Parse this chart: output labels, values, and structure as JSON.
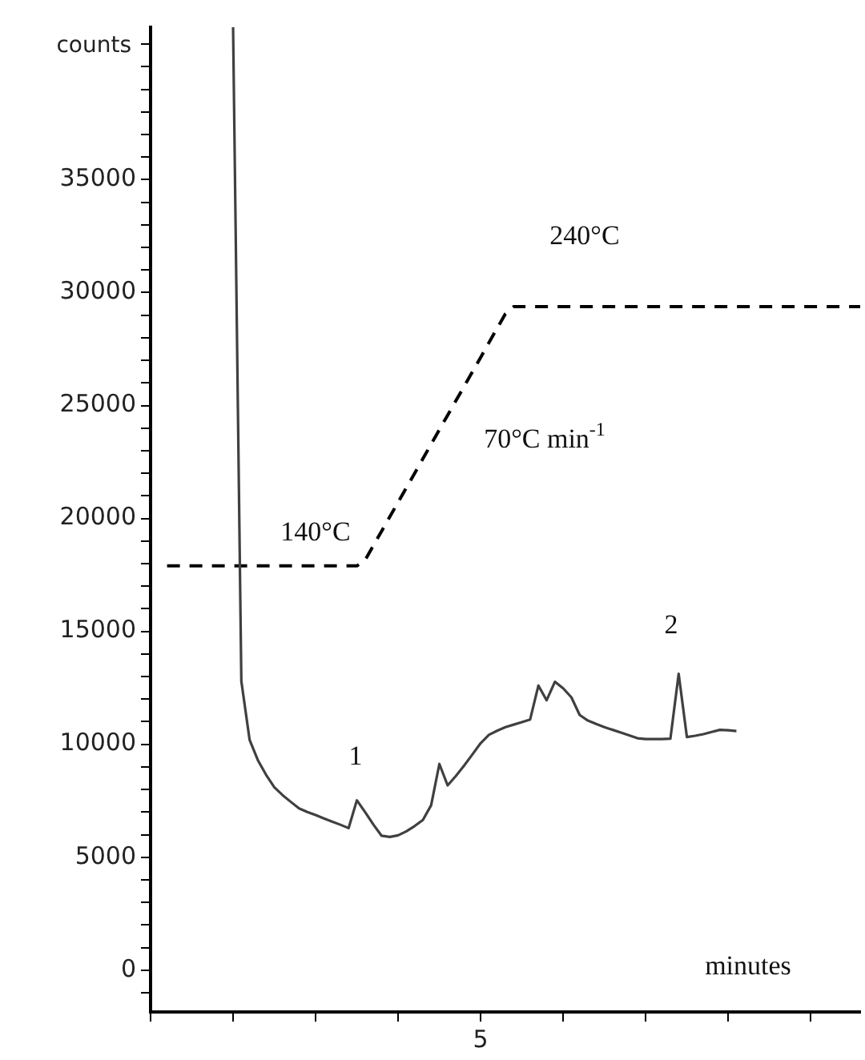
{
  "chart_data": {
    "type": "line",
    "xlabel": "minutes",
    "ylabel": "counts",
    "marker": "none",
    "legend": false,
    "grid": false,
    "categories": [
      null,
      null,
      null,
      null,
      null,
      null,
      null,
      null,
      null,
      null,
      null,
      null,
      null,
      null,
      null,
      null,
      null,
      null,
      null,
      null,
      null,
      null,
      null,
      null,
      null,
      null,
      null,
      null,
      null,
      null,
      null,
      null,
      null,
      null,
      null,
      null,
      null,
      null,
      null,
      null,
      "5",
      null,
      null,
      null,
      null,
      null,
      null,
      null,
      null,
      null,
      null,
      null,
      null,
      null,
      null,
      null,
      null,
      null,
      null,
      null,
      null,
      null,
      null,
      null,
      null,
      null,
      null,
      null,
      null,
      null,
      null,
      null,
      null,
      null,
      null,
      null,
      null,
      null,
      null,
      null,
      null,
      null,
      null,
      null,
      null,
      null,
      null
    ],
    "ylim": [
      -1850,
      41750
    ],
    "yticks": [
      {
        "value": -1000,
        "label": null
      },
      0,
      {
        "value": 1000,
        "label": null
      },
      {
        "value": 2000,
        "label": null
      },
      {
        "value": 3000,
        "label": null
      },
      {
        "value": 4000,
        "label": null
      },
      5000,
      {
        "value": 6000,
        "label": null
      },
      {
        "value": 7000,
        "label": null
      },
      {
        "value": 8000,
        "label": null
      },
      {
        "value": 9000,
        "label": null
      },
      10000,
      {
        "value": 11000,
        "label": null
      },
      {
        "value": 12000,
        "label": null
      },
      {
        "value": 13000,
        "label": null
      },
      {
        "value": 14000,
        "label": null
      },
      15000,
      {
        "value": 16000,
        "label": null
      },
      {
        "value": 17000,
        "label": null
      },
      {
        "value": 18000,
        "label": null
      },
      {
        "value": 19000,
        "label": null
      },
      20000,
      {
        "value": 21000,
        "label": null
      },
      {
        "value": 22000,
        "label": null
      },
      {
        "value": 23000,
        "label": null
      },
      {
        "value": 24000,
        "label": null
      },
      25000,
      {
        "value": 26000,
        "label": null
      },
      {
        "value": 27000,
        "label": null
      },
      {
        "value": 28000,
        "label": null
      },
      {
        "value": 29000,
        "label": null
      },
      30000,
      {
        "value": 31000,
        "label": null
      },
      {
        "value": 32000,
        "label": null
      },
      {
        "value": 33000,
        "label": null
      },
      {
        "value": 34000,
        "label": null
      },
      35000,
      {
        "value": 36000,
        "label": null
      },
      {
        "value": 37000,
        "label": null
      },
      {
        "value": 38000,
        "label": null
      },
      {
        "value": 39000,
        "label": null
      },
      {
        "value": 40000,
        "label": null
      },
      {
        "value": 41000,
        "label": null
      }
    ],
    "series": [
      {
        "color": "#404040",
        "line_style": "solid",
        "values": [
          null,
          null,
          null,
          null,
          null,
          null,
          null,
          null,
          null,
          null,
          41750,
          12800,
          10200,
          9300,
          8650,
          8100,
          7750,
          7450,
          7160,
          7000,
          6870,
          6720,
          6580,
          6440,
          6290,
          7520,
          7000,
          6450,
          5950,
          5900,
          5970,
          6150,
          6380,
          6650,
          7300,
          9130,
          8180,
          8600,
          9060,
          9550,
          10050,
          10420,
          10600,
          10760,
          10870,
          10980,
          11100,
          12600,
          11950,
          12770,
          12480,
          12080,
          11300,
          11050,
          10900,
          10760,
          10640,
          10520,
          10400,
          10270,
          10230,
          10230,
          10230,
          10250,
          13120,
          10320,
          10380,
          10450,
          10550,
          10640,
          10620,
          10590,
          null,
          null,
          null,
          null,
          null,
          null,
          null,
          null,
          null,
          null,
          null,
          null,
          null,
          null,
          null
        ]
      },
      {
        "color": "#000000",
        "line_style": "dashed",
        "values": [
          null,
          null,
          17900,
          17900,
          17900,
          17900,
          17900,
          17900,
          17900,
          17900,
          17900,
          17900,
          17900,
          17900,
          17900,
          17900,
          17900,
          17900,
          17900,
          17900,
          17900,
          17900,
          17900,
          17900,
          17900,
          17900,
          18160,
          18800,
          19440,
          20080,
          20720,
          21360,
          22000,
          22640,
          23290,
          23930,
          24570,
          25210,
          25850,
          26490,
          27130,
          27780,
          28420,
          29060,
          29380,
          29380,
          29380,
          29380,
          29380,
          29380,
          29380,
          29380,
          29380,
          29380,
          29380,
          29380,
          29380,
          29380,
          29380,
          29380,
          29380,
          29380,
          29380,
          29380,
          29380,
          29380,
          29380,
          29380,
          29380,
          29380,
          29380,
          29380,
          29380,
          29380,
          29380,
          29380,
          29380,
          29380,
          29380,
          29380,
          29380,
          29380,
          29380,
          29380,
          29380,
          29380,
          29380
        ]
      }
    ],
    "annotations": [
      "140°C",
      "70°C min$^{-1}$",
      "240°C",
      "1",
      "2"
    ]
  }
}
